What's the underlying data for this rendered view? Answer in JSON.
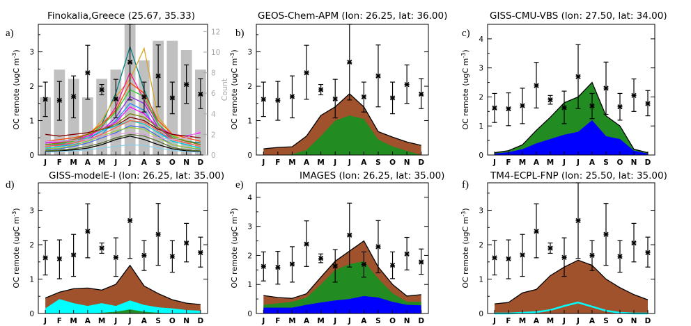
{
  "months": [
    "J",
    "F",
    "M",
    "A",
    "M",
    "J",
    "J",
    "A",
    "S",
    "O",
    "N",
    "D"
  ],
  "ylabel": "OC remote (ugC m",
  "ylabel_sup": "-3",
  "ylabel_close": ")",
  "colors": {
    "brown": "#a0522d",
    "green": "#228b22",
    "blue": "#0000ff",
    "cyan": "#00ffff",
    "count_bar": "#c0c0c0",
    "count_axis": "#a9a9a9"
  },
  "chart_data": [
    {
      "panel": "a)",
      "title": "Finokalia,Greece (25.67, 35.33)",
      "type": "bar",
      "ylim": [
        0,
        3.8
      ],
      "yticks": [
        0,
        1,
        2,
        3
      ],
      "right_axis": {
        "label": "Count",
        "ylim": [
          0,
          12.7
        ],
        "ticks": [
          0,
          2,
          4,
          6,
          8,
          10,
          12
        ]
      },
      "count": [
        5.6,
        8.3,
        7.4,
        5.6,
        7.4,
        8.3,
        12.9,
        9.2,
        11.1,
        11.1,
        10.2,
        8.3
      ],
      "obs": {
        "mean": [
          1.62,
          1.59,
          1.7,
          2.39,
          1.9,
          1.63,
          2.7,
          1.69,
          2.3,
          1.66,
          2.05,
          1.77
        ],
        "low": [
          1.12,
          1.01,
          1.08,
          1.62,
          1.75,
          1.08,
          1.6,
          1.25,
          1.4,
          1.2,
          1.5,
          1.35
        ],
        "high": [
          2.12,
          2.14,
          2.3,
          3.19,
          2.05,
          2.2,
          3.8,
          2.12,
          3.2,
          2.12,
          2.62,
          2.22
        ]
      },
      "lines": [
        {
          "color": "#008080",
          "values": [
            0.35,
            0.4,
            0.45,
            0.6,
            0.9,
            1.8,
            3.15,
            1.9,
            0.9,
            0.5,
            0.4,
            0.35
          ]
        },
        {
          "color": "#daa520",
          "values": [
            0.3,
            0.35,
            0.4,
            0.55,
            1.0,
            1.7,
            2.2,
            3.1,
            1.1,
            0.6,
            0.4,
            0.3
          ]
        },
        {
          "color": "#ff1493",
          "values": [
            0.3,
            0.35,
            0.4,
            0.5,
            0.8,
            1.4,
            2.4,
            1.6,
            0.9,
            0.5,
            0.4,
            0.3
          ]
        },
        {
          "color": "#ff4500",
          "values": [
            0.4,
            0.45,
            0.5,
            0.6,
            0.9,
            1.3,
            2.1,
            1.8,
            1.0,
            0.6,
            0.5,
            0.4
          ]
        },
        {
          "color": "#32cd32",
          "values": [
            0.3,
            0.32,
            0.4,
            0.55,
            0.85,
            1.25,
            1.9,
            1.7,
            0.9,
            0.55,
            0.4,
            0.3
          ]
        },
        {
          "color": "#8a2be2",
          "values": [
            0.25,
            0.3,
            0.35,
            0.45,
            0.7,
            1.1,
            1.7,
            1.5,
            0.8,
            0.45,
            0.35,
            0.25
          ]
        },
        {
          "color": "#1e90ff",
          "values": [
            0.2,
            0.25,
            0.3,
            0.4,
            0.6,
            1.0,
            1.5,
            1.3,
            0.7,
            0.4,
            0.3,
            0.2
          ]
        },
        {
          "color": "#ff00ff",
          "values": [
            0.35,
            0.38,
            0.45,
            0.55,
            0.75,
            0.95,
            1.4,
            1.2,
            0.8,
            0.6,
            0.55,
            0.65
          ]
        },
        {
          "color": "#800000",
          "values": [
            0.6,
            0.55,
            0.6,
            0.65,
            0.75,
            0.85,
            1.1,
            1.0,
            0.75,
            0.6,
            0.55,
            0.5
          ]
        },
        {
          "color": "#808000",
          "values": [
            0.3,
            0.35,
            0.45,
            0.6,
            0.75,
            0.9,
            1.2,
            1.1,
            0.8,
            0.5,
            0.4,
            0.3
          ]
        },
        {
          "color": "#00ced1",
          "values": [
            0.2,
            0.25,
            0.35,
            0.5,
            0.7,
            0.85,
            1.0,
            0.9,
            0.65,
            0.4,
            0.3,
            0.2
          ]
        },
        {
          "color": "#ff6347",
          "values": [
            0.25,
            0.28,
            0.35,
            0.45,
            0.6,
            0.8,
            1.0,
            0.95,
            0.7,
            0.45,
            0.35,
            0.25
          ]
        },
        {
          "color": "#4169e1",
          "values": [
            0.15,
            0.18,
            0.25,
            0.35,
            0.5,
            0.65,
            0.85,
            0.8,
            0.55,
            0.3,
            0.22,
            0.16
          ]
        },
        {
          "color": "#9acd32",
          "values": [
            0.18,
            0.2,
            0.28,
            0.4,
            0.55,
            0.7,
            0.8,
            0.75,
            0.5,
            0.3,
            0.22,
            0.18
          ]
        },
        {
          "color": "#dda0dd",
          "values": [
            0.4,
            0.4,
            0.42,
            0.45,
            0.55,
            0.6,
            0.65,
            0.6,
            0.5,
            0.45,
            0.5,
            0.7
          ]
        },
        {
          "color": "#000000",
          "values": [
            0.1,
            0.12,
            0.15,
            0.2,
            0.3,
            0.45,
            0.55,
            0.45,
            0.3,
            0.18,
            0.12,
            0.1
          ]
        },
        {
          "color": "#556b2f",
          "values": [
            0.12,
            0.14,
            0.18,
            0.25,
            0.35,
            0.5,
            0.6,
            0.55,
            0.4,
            0.22,
            0.15,
            0.12
          ]
        },
        {
          "color": "#87ceeb",
          "values": [
            0.08,
            0.1,
            0.12,
            0.15,
            0.2,
            0.25,
            0.3,
            0.28,
            0.2,
            0.14,
            0.1,
            0.08
          ]
        }
      ]
    },
    {
      "panel": "b)",
      "title": "GEOS-Chem-APM (lon: 26.25, lat: 36.00)",
      "type": "area",
      "ylim": [
        0,
        3.8
      ],
      "yticks": [
        0,
        1,
        2,
        3
      ],
      "obs": {
        "mean": [
          1.62,
          1.59,
          1.7,
          2.39,
          1.9,
          1.63,
          2.7,
          1.69,
          2.3,
          1.66,
          2.05,
          1.77
        ],
        "low": [
          1.12,
          1.01,
          1.08,
          1.62,
          1.75,
          1.08,
          1.6,
          1.25,
          1.4,
          1.2,
          1.5,
          1.35
        ],
        "high": [
          2.12,
          2.14,
          2.3,
          3.19,
          2.05,
          2.2,
          3.8,
          2.12,
          3.2,
          2.12,
          2.62,
          2.22
        ]
      },
      "series": [
        {
          "color": "brown",
          "values": [
            0.18,
            0.22,
            0.24,
            0.55,
            1.15,
            1.4,
            1.78,
            1.4,
            0.68,
            0.52,
            0.38,
            0.28
          ]
        },
        {
          "color": "green",
          "values": [
            0.0,
            0.0,
            0.02,
            0.15,
            0.55,
            1.0,
            1.15,
            1.05,
            0.45,
            0.25,
            0.12,
            0.0
          ]
        }
      ]
    },
    {
      "panel": "c)",
      "title": "GISS-CMU-VBS (lon: 27.50, lat: 34.00)",
      "type": "area",
      "ylim": [
        0,
        4.5
      ],
      "yticks": [
        0,
        1,
        2,
        3,
        4
      ],
      "obs": {
        "mean": [
          1.62,
          1.59,
          1.7,
          2.39,
          1.9,
          1.63,
          2.7,
          1.69,
          2.3,
          1.66,
          2.05,
          1.77
        ],
        "low": [
          1.12,
          1.01,
          1.08,
          1.62,
          1.75,
          1.08,
          1.6,
          1.25,
          1.4,
          1.2,
          1.5,
          1.35
        ],
        "high": [
          2.12,
          2.14,
          2.3,
          3.19,
          2.05,
          2.2,
          3.8,
          2.12,
          3.2,
          2.12,
          2.62,
          2.22
        ]
      },
      "series": [
        {
          "color": "green",
          "values": [
            0.08,
            0.15,
            0.35,
            0.85,
            1.3,
            1.8,
            2.0,
            2.5,
            1.35,
            1.0,
            0.2,
            0.08
          ]
        },
        {
          "color": "blue",
          "values": [
            0.05,
            0.1,
            0.2,
            0.4,
            0.55,
            0.7,
            0.8,
            1.2,
            0.65,
            0.55,
            0.15,
            0.05
          ]
        }
      ]
    },
    {
      "panel": "d)",
      "title": "GISS-modelE-I (lon: 26.25, lat: 35.00)",
      "type": "area",
      "ylim": [
        0,
        3.8
      ],
      "yticks": [
        0,
        1,
        2,
        3
      ],
      "obs": {
        "mean": [
          1.62,
          1.59,
          1.7,
          2.39,
          1.9,
          1.63,
          2.7,
          1.69,
          2.3,
          1.66,
          2.05,
          1.77
        ],
        "low": [
          1.12,
          1.01,
          1.08,
          1.62,
          1.75,
          1.08,
          1.6,
          1.25,
          1.4,
          1.2,
          1.5,
          1.35
        ],
        "high": [
          2.12,
          2.14,
          2.3,
          3.19,
          2.05,
          2.2,
          3.8,
          2.12,
          3.2,
          2.12,
          2.62,
          2.22
        ]
      },
      "series": [
        {
          "color": "brown",
          "values": [
            0.45,
            0.62,
            0.72,
            0.74,
            0.68,
            0.85,
            1.4,
            0.8,
            0.58,
            0.4,
            0.3,
            0.26
          ]
        },
        {
          "color": "cyan",
          "values": [
            0.15,
            0.42,
            0.3,
            0.22,
            0.3,
            0.22,
            0.38,
            0.25,
            0.18,
            0.15,
            0.1,
            0.08
          ]
        },
        {
          "color": "green",
          "values": [
            0.0,
            0.0,
            0.0,
            0.0,
            0.02,
            0.05,
            0.12,
            0.05,
            0.02,
            0.0,
            0.0,
            0.0
          ]
        }
      ]
    },
    {
      "panel": "e)",
      "title": "IMAGES (lon: 26.25, lat: 35.00)",
      "type": "area",
      "ylim": [
        0,
        4.5
      ],
      "yticks": [
        0,
        1,
        2,
        3,
        4
      ],
      "obs": {
        "mean": [
          1.62,
          1.59,
          1.7,
          2.39,
          1.9,
          1.63,
          2.7,
          1.69,
          2.3,
          1.66,
          2.05,
          1.77
        ],
        "low": [
          1.12,
          1.01,
          1.08,
          1.62,
          1.75,
          1.08,
          1.6,
          1.25,
          1.4,
          1.2,
          1.5,
          1.35
        ],
        "high": [
          2.12,
          2.14,
          2.3,
          3.19,
          2.05,
          2.2,
          3.8,
          2.12,
          3.2,
          2.12,
          2.62,
          2.22
        ]
      },
      "series": [
        {
          "color": "brown",
          "values": [
            0.62,
            0.55,
            0.52,
            0.68,
            1.25,
            1.8,
            2.15,
            2.5,
            1.6,
            1.0,
            0.6,
            0.65
          ]
        },
        {
          "color": "green",
          "values": [
            0.3,
            0.35,
            0.4,
            0.55,
            1.0,
            1.5,
            1.7,
            1.8,
            1.2,
            0.7,
            0.4,
            0.4
          ]
        },
        {
          "color": "blue",
          "values": [
            0.2,
            0.2,
            0.2,
            0.3,
            0.38,
            0.45,
            0.5,
            0.6,
            0.55,
            0.4,
            0.3,
            0.28
          ]
        }
      ]
    },
    {
      "panel": "f)",
      "title": "TM4-ECPL-FNP (lon: 25.50, lat: 35.00)",
      "type": "area",
      "ylim": [
        0,
        3.8
      ],
      "yticks": [
        0,
        1,
        2,
        3
      ],
      "obs": {
        "mean": [
          1.62,
          1.59,
          1.7,
          2.39,
          1.9,
          1.63,
          2.7,
          1.69,
          2.3,
          1.66,
          2.05,
          1.77
        ],
        "low": [
          1.12,
          1.01,
          1.08,
          1.62,
          1.75,
          1.08,
          1.6,
          1.25,
          1.4,
          1.2,
          1.5,
          1.35
        ],
        "high": [
          2.12,
          2.14,
          2.3,
          3.19,
          2.05,
          2.2,
          3.8,
          2.12,
          3.2,
          2.12,
          2.62,
          2.22
        ]
      },
      "series": [
        {
          "color": "brown",
          "values": [
            0.28,
            0.32,
            0.6,
            0.7,
            1.1,
            1.35,
            1.55,
            1.4,
            1.0,
            0.75,
            0.55,
            0.4
          ]
        }
      ],
      "overlay_line": {
        "color": "cyan",
        "values": [
          0.0,
          0.0,
          0.02,
          0.04,
          0.1,
          0.22,
          0.32,
          0.2,
          0.08,
          0.02,
          0.0,
          0.0
        ]
      }
    }
  ]
}
